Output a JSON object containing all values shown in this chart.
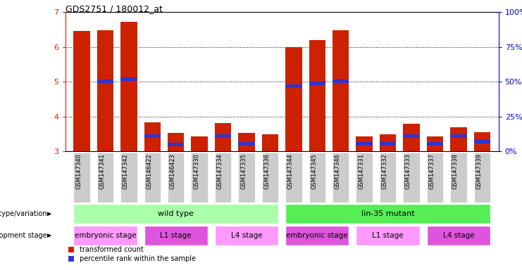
{
  "title": "GDS2751 / 180012_at",
  "samples": [
    "GSM147340",
    "GSM147341",
    "GSM147342",
    "GSM146422",
    "GSM146423",
    "GSM147330",
    "GSM147334",
    "GSM147335",
    "GSM147336",
    "GSM147344",
    "GSM147345",
    "GSM147346",
    "GSM147331",
    "GSM147332",
    "GSM147333",
    "GSM147337",
    "GSM147338",
    "GSM147339"
  ],
  "red_values": [
    6.45,
    6.48,
    6.72,
    3.82,
    3.52,
    3.42,
    3.8,
    3.52,
    3.48,
    6.0,
    6.2,
    6.48,
    3.42,
    3.49,
    3.78,
    3.42,
    3.68,
    3.55
  ],
  "blue_values": [
    3.0,
    5.02,
    5.08,
    3.43,
    3.2,
    3.0,
    3.43,
    3.22,
    3.0,
    4.88,
    4.95,
    5.02,
    3.22,
    3.22,
    3.43,
    3.22,
    3.44,
    3.28
  ],
  "blue_flags": [
    false,
    true,
    true,
    true,
    true,
    false,
    true,
    true,
    false,
    true,
    true,
    true,
    true,
    true,
    true,
    true,
    true,
    true
  ],
  "ylim_left": [
    3.0,
    7.0
  ],
  "ylim_right": [
    0,
    100
  ],
  "yticks_left": [
    3,
    4,
    5,
    6,
    7
  ],
  "yticks_right": [
    0,
    25,
    50,
    75,
    100
  ],
  "bar_color_red": "#cc2200",
  "bar_color_blue": "#3333cc",
  "bar_width": 0.7,
  "genotype_groups": [
    {
      "label": "wild type",
      "start": 0,
      "end": 8,
      "color": "#aaffaa"
    },
    {
      "label": "lin-35 mutant",
      "start": 9,
      "end": 17,
      "color": "#55ee55"
    }
  ],
  "stage_groups": [
    {
      "label": "embryonic stage",
      "start": 0,
      "end": 2,
      "color": "#ff99ff"
    },
    {
      "label": "L1 stage",
      "start": 3,
      "end": 5,
      "color": "#dd55dd"
    },
    {
      "label": "L4 stage",
      "start": 6,
      "end": 8,
      "color": "#ff99ff"
    },
    {
      "label": "embryonic stage",
      "start": 9,
      "end": 11,
      "color": "#dd55dd"
    },
    {
      "label": "L1 stage",
      "start": 12,
      "end": 14,
      "color": "#ff99ff"
    },
    {
      "label": "L4 stage",
      "start": 15,
      "end": 17,
      "color": "#dd55dd"
    }
  ],
  "legend_red_label": "transformed count",
  "legend_blue_label": "percentile rank within the sample",
  "xlabel_genotype": "genotype/variation",
  "xlabel_stage": "development stage",
  "right_axis_color": "#0000cc",
  "left_axis_color": "#cc2200",
  "grid_color": "black",
  "xtick_bg_color": "#cccccc",
  "plot_bg_color": "#ffffff"
}
